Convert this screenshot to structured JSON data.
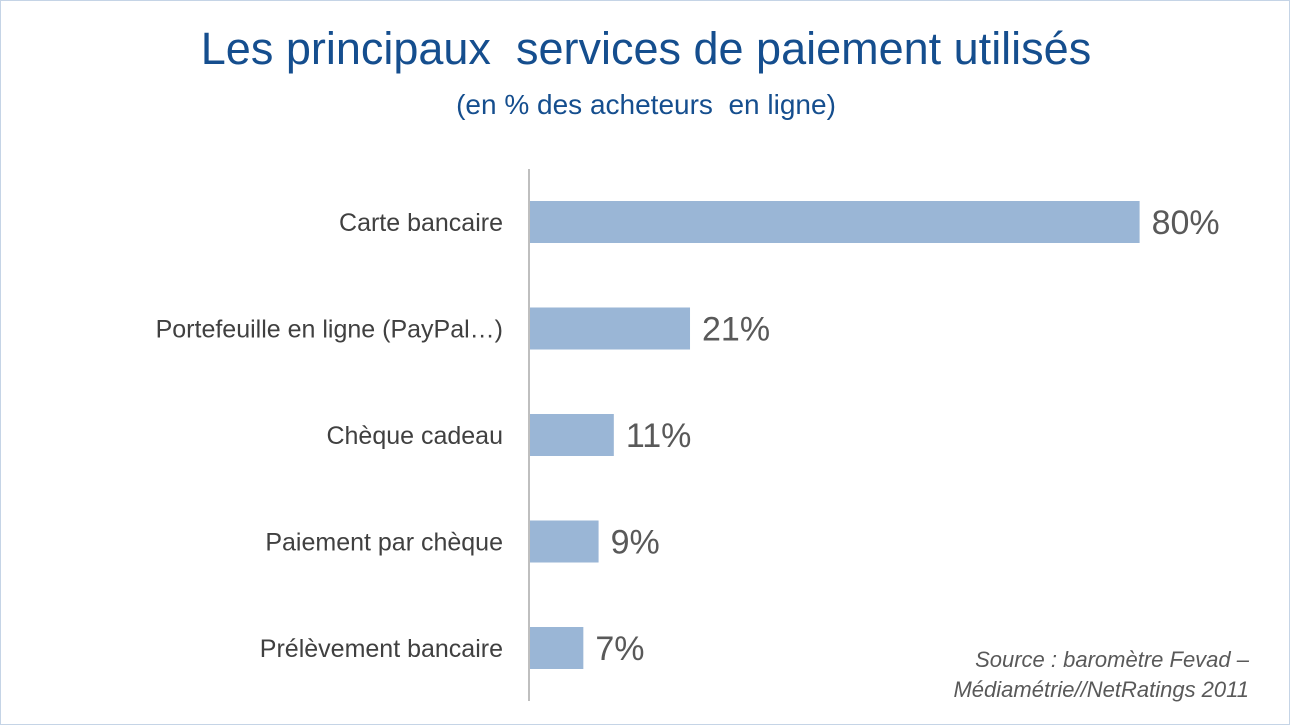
{
  "title": "Les principaux  services de paiement utilisés",
  "subtitle": "(en % des acheteurs  en ligne)",
  "source": {
    "line1": "Source : baromètre Fevad –",
    "line2": "Médiamétrie//NetRatings 2011"
  },
  "chart_data": {
    "type": "bar",
    "orientation": "horizontal",
    "categories": [
      "Carte bancaire",
      "Portefeuille en ligne (PayPal…)",
      "Chèque cadeau",
      "Paiement par chèque",
      "Prélèvement bancaire"
    ],
    "values": [
      80,
      21,
      11,
      9,
      7
    ],
    "value_labels": [
      "80%",
      "21%",
      "11%",
      "9%",
      "7%"
    ],
    "unit": "%",
    "xlim": [
      0,
      100
    ],
    "grid": false,
    "bar_color": "#9ab6d6",
    "axis_color": "#7f7f7f",
    "label_color": "#404040",
    "value_label_color": "#595959"
  }
}
